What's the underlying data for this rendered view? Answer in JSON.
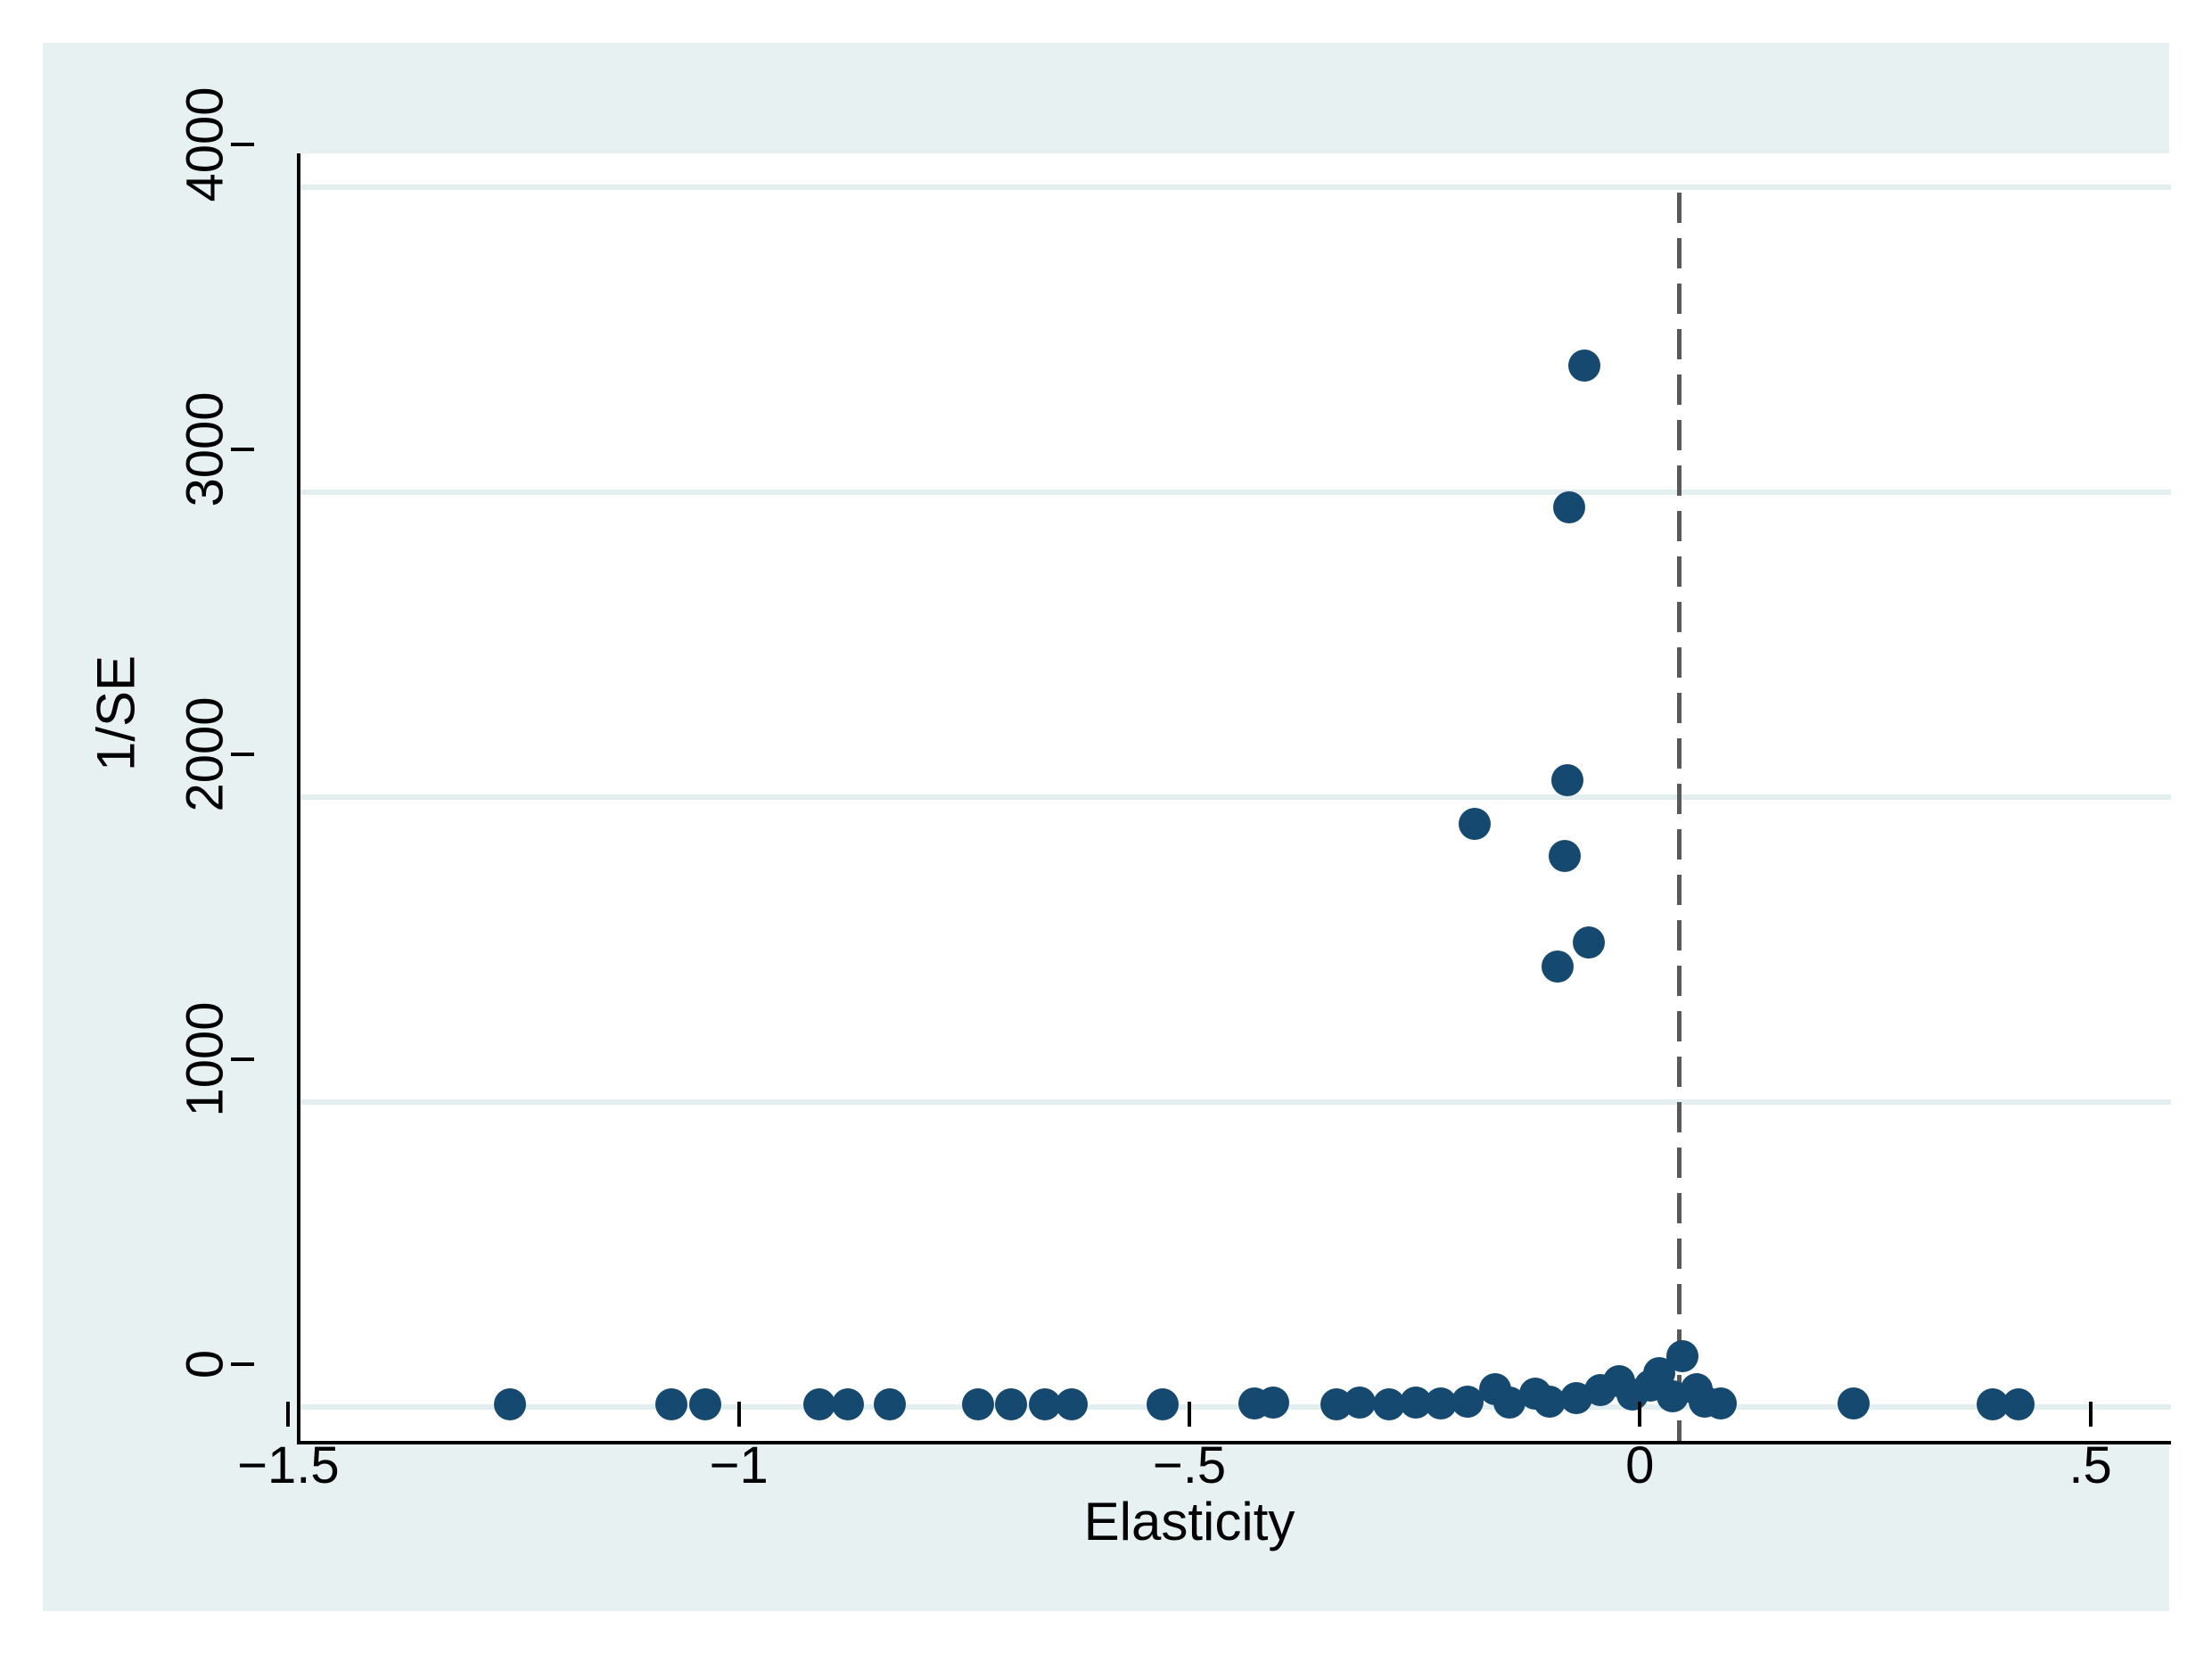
{
  "chart_data": {
    "type": "scatter",
    "title": "",
    "xlabel": "Elasticity",
    "ylabel": "1/SE",
    "x_tick_labels": [
      "−1.5",
      "−1",
      "−.5",
      "0",
      ".5"
    ],
    "x_tick_values": [
      -1.5,
      -1,
      -0.5,
      0,
      0.5
    ],
    "y_tick_labels": [
      "0",
      "1000",
      "2000",
      "3000",
      "4000"
    ],
    "y_tick_values": [
      0,
      1000,
      2000,
      3000,
      4000
    ],
    "xlim": [
      -1.538,
      0.538
    ],
    "ylim": [
      -111,
      4111
    ],
    "grid": "horizontal-only",
    "legend": "none",
    "reference_line_x": -0.008,
    "reference_line_style": "dashed-vertical",
    "colors": {
      "marker": "#15496f",
      "panel_background": "#e7f1f2",
      "plot_background": "#ffffff",
      "gridline": "#e3eef0",
      "dashed_line": "#5a5a5a",
      "axis": "#000000",
      "text": "#000000"
    },
    "points": [
      [
        -0.113,
        3415
      ],
      [
        -0.13,
        2950
      ],
      [
        -0.132,
        2055
      ],
      [
        -0.235,
        1912
      ],
      [
        -0.135,
        1808
      ],
      [
        -0.108,
        1522
      ],
      [
        -0.143,
        1445
      ],
      [
        -1.305,
        8
      ],
      [
        -1.126,
        8
      ],
      [
        -1.089,
        8
      ],
      [
        -0.962,
        8
      ],
      [
        -0.93,
        8
      ],
      [
        -0.884,
        10
      ],
      [
        -0.786,
        8
      ],
      [
        -0.749,
        8
      ],
      [
        -0.712,
        8
      ],
      [
        -0.682,
        8
      ],
      [
        -0.581,
        8
      ],
      [
        -0.479,
        12
      ],
      [
        -0.458,
        15
      ],
      [
        -0.388,
        10
      ],
      [
        -0.362,
        14
      ],
      [
        -0.33,
        10
      ],
      [
        -0.3,
        16
      ],
      [
        -0.272,
        12
      ],
      [
        -0.243,
        18
      ],
      [
        -0.212,
        60
      ],
      [
        -0.196,
        15
      ],
      [
        -0.168,
        45
      ],
      [
        -0.152,
        18
      ],
      [
        -0.122,
        30
      ],
      [
        -0.095,
        55
      ],
      [
        -0.075,
        85
      ],
      [
        -0.06,
        40
      ],
      [
        -0.04,
        70
      ],
      [
        -0.03,
        110
      ],
      [
        -0.015,
        35
      ],
      [
        -0.004,
        168
      ],
      [
        0.012,
        60
      ],
      [
        0.02,
        18
      ],
      [
        0.038,
        12
      ],
      [
        0.186,
        12
      ],
      [
        0.34,
        8
      ],
      [
        0.369,
        8
      ]
    ]
  }
}
